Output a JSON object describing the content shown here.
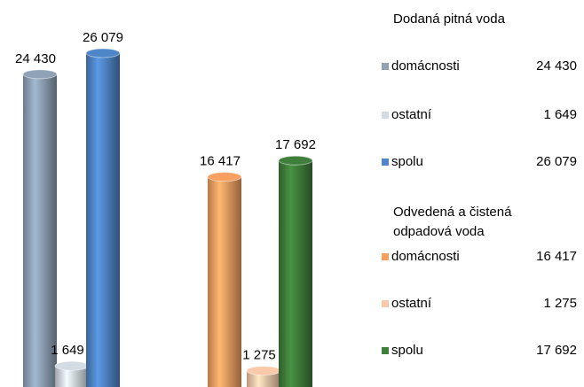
{
  "chart_data": [
    {
      "type": "bar",
      "title": "Dodaná pitná voda",
      "categories": [
        "domácnosti",
        "ostatní",
        "spolu"
      ],
      "values": [
        24430,
        1649,
        26079
      ],
      "value_labels": [
        "24 430",
        "1 649",
        "26 079"
      ],
      "colors": [
        "#8fa2b6",
        "#d3dbe3",
        "#4f86c8"
      ]
    },
    {
      "type": "bar",
      "title": "Odvedená a čistená odpadová voda",
      "categories": [
        "domácnosti",
        "ostatní",
        "spolu"
      ],
      "values": [
        16417,
        1275,
        17692
      ],
      "value_labels": [
        "16 417",
        "1 275",
        "17 692"
      ],
      "colors": [
        "#f8a062",
        "#f9c9aa",
        "#3f7f3b"
      ]
    }
  ]
}
